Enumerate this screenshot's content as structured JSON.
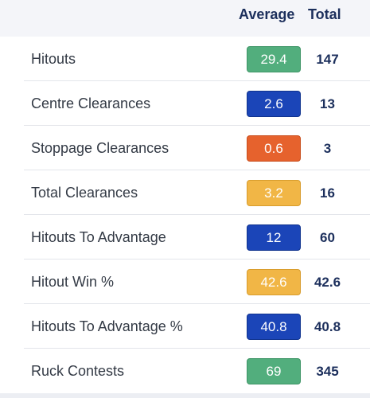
{
  "header": {
    "average_label": "Average",
    "total_label": "Total"
  },
  "colors": {
    "green": "#52ae7d",
    "blue": "#1b45b8",
    "orange": "#e6622d",
    "yellow": "#f1b646",
    "navy_text": "#1c2f5c"
  },
  "rows": [
    {
      "label": "Hitouts",
      "average": "29.4",
      "total": "147",
      "badge_color": "green"
    },
    {
      "label": "Centre Clearances",
      "average": "2.6",
      "total": "13",
      "badge_color": "blue"
    },
    {
      "label": "Stoppage Clearances",
      "average": "0.6",
      "total": "3",
      "badge_color": "orange"
    },
    {
      "label": "Total Clearances",
      "average": "3.2",
      "total": "16",
      "badge_color": "yellow"
    },
    {
      "label": "Hitouts To Advantage",
      "average": "12",
      "total": "60",
      "badge_color": "blue"
    },
    {
      "label": "Hitout Win %",
      "average": "42.6",
      "total": "42.6",
      "badge_color": "yellow"
    },
    {
      "label": "Hitouts To Advantage %",
      "average": "40.8",
      "total": "40.8",
      "badge_color": "blue"
    },
    {
      "label": "Ruck Contests",
      "average": "69",
      "total": "345",
      "badge_color": "green"
    }
  ]
}
